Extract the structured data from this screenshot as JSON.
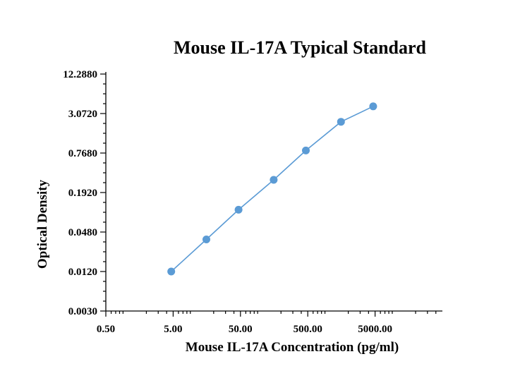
{
  "chart_data": {
    "type": "scatter",
    "title": "Mouse IL-17A Typical Standard",
    "xlabel": "Mouse IL-17A Concentration (pg/ml)",
    "ylabel": "Optical Density",
    "xscale": "log",
    "yscale": "log",
    "xlim": [
      0.5,
      50000
    ],
    "ylim": [
      0.003,
      12.288
    ],
    "x_ticks": [
      0.5,
      5,
      50,
      500,
      5000
    ],
    "x_tick_labels": [
      "0.50",
      "5.00",
      "50.00",
      "500.00",
      "5000.00"
    ],
    "y_ticks": [
      0.003,
      0.012,
      0.048,
      0.192,
      0.768,
      3.072,
      12.288
    ],
    "y_tick_labels": [
      "0.0030",
      "0.0120",
      "0.0480",
      "0.1920",
      "0.7680",
      "3.0720",
      "12.2880"
    ],
    "grid": false,
    "series": [
      {
        "x": [
          4.69,
          15.6,
          46.9,
          156,
          469,
          1560,
          4690
        ],
        "y": [
          0.012,
          0.037,
          0.105,
          0.3,
          0.84,
          2.3,
          3.95
        ],
        "color": "#5b9bd5",
        "marker": "circle",
        "connected": true
      }
    ]
  }
}
